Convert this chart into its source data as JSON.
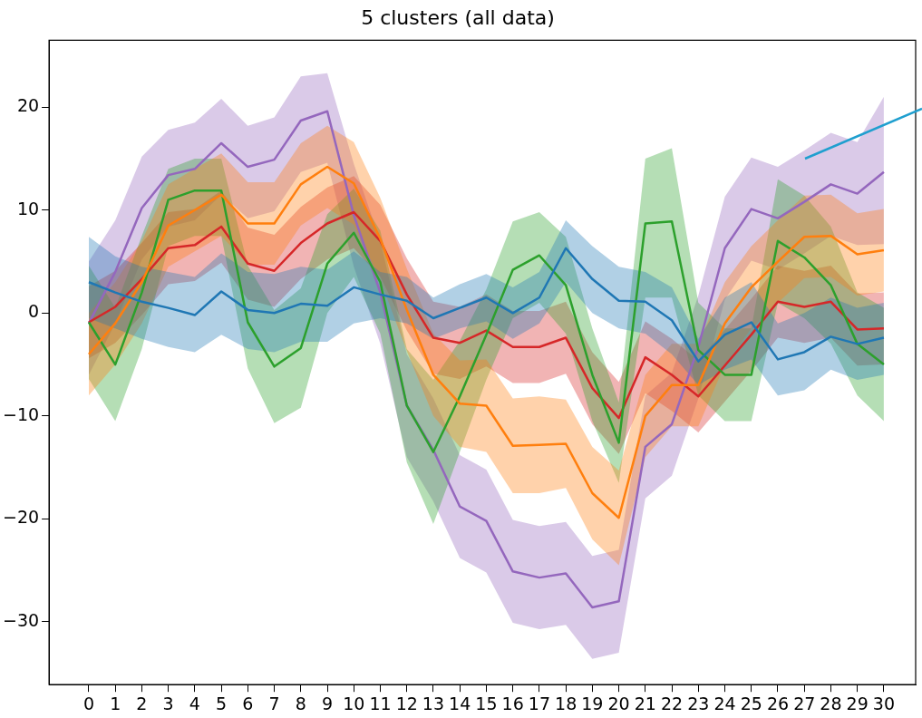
{
  "chart_data": {
    "type": "line",
    "title": "5 clusters (all data)",
    "x": [
      0,
      1,
      2,
      3,
      4,
      5,
      6,
      7,
      8,
      9,
      10,
      11,
      12,
      13,
      14,
      15,
      16,
      17,
      18,
      19,
      20,
      21,
      22,
      23,
      24,
      25,
      26,
      27,
      28,
      29,
      30
    ],
    "xlim": [
      -1.5,
      31.2
    ],
    "xticks": [
      0,
      1,
      2,
      3,
      4,
      5,
      6,
      7,
      8,
      9,
      10,
      11,
      12,
      13,
      14,
      15,
      16,
      17,
      18,
      19,
      20,
      21,
      22,
      23,
      24,
      25,
      26,
      27,
      28,
      29,
      30
    ],
    "ylim": [
      -36.1,
      26.5
    ],
    "yticks": [
      {
        "value": -30,
        "label": "−30"
      },
      {
        "value": -20,
        "label": "−20"
      },
      {
        "value": -10,
        "label": "−10"
      },
      0,
      10,
      20
    ],
    "grid": false,
    "legend": false,
    "marker": "none",
    "line_style": "solid",
    "series": [
      {
        "color": "#1f77b4",
        "values": [
          3.0,
          2.0,
          1.1,
          0.5,
          -0.2,
          2.1,
          0.3,
          0,
          0.9,
          0.7,
          2.5,
          1.8,
          1.2,
          -0.5,
          0.5,
          1.5,
          0,
          1.5,
          6.3,
          3.3,
          1.2,
          1.1,
          -0.7,
          -4.7,
          -2.1,
          -0.9,
          -4.5,
          -3.8,
          -2.3,
          -3.0,
          -2.4
        ],
        "lower": [
          -0.5,
          -1.5,
          -2.5,
          -3.3,
          -3.8,
          -2.1,
          -3.5,
          -3.8,
          -2.8,
          -2.8,
          -1,
          -0.5,
          -1,
          -2.5,
          -1.5,
          -0.8,
          -2.5,
          -1,
          3,
          0,
          -1.5,
          -2,
          -4,
          -7,
          -5.5,
          -4.5,
          -8,
          -7.5,
          -5.5,
          -6.5,
          -6
        ],
        "upper": [
          7.4,
          5.5,
          4.5,
          4,
          3.5,
          5.8,
          4,
          3.8,
          4.5,
          4.2,
          6,
          4,
          3.5,
          1.5,
          2.8,
          3.8,
          2.5,
          4,
          9,
          6.5,
          4.5,
          4,
          2.5,
          -2.5,
          1.5,
          3,
          -1,
          0,
          1.5,
          0.5,
          1
        ]
      },
      {
        "color": "#ff7f0e",
        "values": [
          -4,
          -1,
          3,
          8.5,
          10,
          11.5,
          8.7,
          8.7,
          12.5,
          14.2,
          12.6,
          7.2,
          0.3,
          -6,
          -8.8,
          -9,
          -12.9,
          -12.8,
          -12.7,
          -17.5,
          -19.9,
          -10,
          -7,
          -7,
          -1,
          2.5,
          5,
          7.4,
          7.5,
          5.7,
          6.1
        ],
        "lower": [
          -8,
          -5,
          -1,
          4.5,
          6,
          7.5,
          4.7,
          4.7,
          8.5,
          10.2,
          8.6,
          3.2,
          -3.7,
          -10,
          -13,
          -13.5,
          -17.5,
          -17.5,
          -17,
          -22,
          -24.5,
          -14,
          -11,
          -11,
          -5,
          -1.5,
          1,
          3.4,
          3.5,
          1.7,
          2.1
        ],
        "upper": [
          0,
          3,
          7,
          12.5,
          14,
          15.5,
          12.7,
          12.7,
          16.5,
          18.2,
          16.6,
          11.2,
          4.3,
          -2,
          -4.6,
          -4.5,
          -8.3,
          -8.1,
          -8.4,
          -13,
          -15.3,
          -6,
          -3,
          -3,
          3,
          6.5,
          9,
          11.4,
          11.5,
          9.7,
          10.1
        ]
      },
      {
        "color": "#2ca02c",
        "values": [
          -0.9,
          -5,
          2,
          11,
          11.9,
          11.9,
          -0.9,
          -5.2,
          -3.4,
          4.8,
          7.8,
          3,
          -9,
          -13.5,
          -8.1,
          -2.1,
          4.2,
          5.6,
          2.7,
          -6,
          -12.6,
          8.7,
          8.9,
          -3.6,
          -6,
          -6,
          7,
          5.4,
          2.7,
          -3,
          -5
        ],
        "lower": [
          -6.4,
          -10.5,
          -3.5,
          6.5,
          7.5,
          7.5,
          -5.4,
          -10.7,
          -9.2,
          0,
          3.5,
          -2,
          -14.5,
          -20.5,
          -13.5,
          -6.5,
          -0.5,
          1,
          -2,
          -10.5,
          -16.5,
          1.5,
          1.5,
          -8,
          -10.5,
          -10.5,
          1,
          -0.5,
          -3,
          -8,
          -10.5
        ],
        "upper": [
          4.6,
          0.5,
          7.5,
          14,
          15,
          15,
          4.6,
          0.3,
          2.4,
          9.6,
          12.1,
          8,
          -3.5,
          -6.5,
          -2.7,
          2.3,
          8.9,
          9.8,
          7.4,
          -1.5,
          -8.7,
          15,
          16,
          1,
          -1.5,
          -1.5,
          13,
          11.4,
          8.4,
          2,
          0.5
        ]
      },
      {
        "color": "#d62728",
        "values": [
          -0.9,
          0.6,
          3.3,
          6.3,
          6.6,
          8.4,
          4.8,
          4.1,
          6.8,
          8.7,
          9.8,
          7,
          1.8,
          -2.4,
          -2.9,
          -1.7,
          -3.3,
          -3.3,
          -2.4,
          -7.3,
          -10.2,
          -4.3,
          -6,
          -8.1,
          -5.1,
          -2.1,
          1.1,
          0.6,
          1.1,
          -1.6,
          -1.5
        ],
        "lower": [
          -4.4,
          -2.9,
          -0.2,
          2.8,
          3.1,
          4.9,
          1.3,
          0.6,
          3.3,
          5.2,
          6.3,
          3.5,
          -1.7,
          -5.9,
          -6.4,
          -5.2,
          -6.8,
          -6.8,
          -5.9,
          -10.8,
          -13.7,
          -7.8,
          -9.5,
          -11.6,
          -8.6,
          -5.6,
          -2.4,
          -2.9,
          -2.4,
          -5.1,
          -5
        ],
        "upper": [
          2.6,
          4.1,
          6.8,
          9.8,
          10.1,
          11.9,
          8.3,
          7.6,
          10.3,
          12.2,
          13.3,
          10.5,
          5.3,
          1.1,
          0.6,
          1.8,
          0.2,
          0.2,
          1.1,
          -3.8,
          -6.7,
          -0.8,
          -2.5,
          -4.6,
          -1.6,
          1.4,
          4.6,
          4.1,
          4.6,
          1.9,
          2
        ]
      },
      {
        "color": "#9467bd",
        "values": [
          -1,
          4,
          10.2,
          13.4,
          14,
          16.5,
          14.2,
          14.9,
          18.7,
          19.6,
          9.5,
          2,
          -9,
          -13.3,
          -18.8,
          -20.2,
          -25.1,
          -25.7,
          -25.3,
          -28.6,
          -28,
          -13,
          -10.8,
          -3.3,
          6.3,
          10.1,
          9.2,
          10.8,
          12.5,
          11.6,
          13.7
        ],
        "lower": [
          -6,
          -1,
          5.2,
          8.4,
          9,
          11.5,
          9.2,
          9.9,
          13.7,
          14.6,
          4.5,
          -3,
          -14,
          -18.3,
          -23.8,
          -25.2,
          -30.1,
          -30.7,
          -30.3,
          -33.6,
          -33,
          -18,
          -15.8,
          -8.3,
          1.3,
          5.1,
          4.2,
          5.8,
          7.5,
          6.6,
          6.7
        ],
        "upper": [
          5,
          9,
          15.2,
          17.8,
          18.5,
          20.8,
          18.2,
          19,
          23,
          23.3,
          14.5,
          7,
          -4,
          -8.3,
          -13.8,
          -15.2,
          -20.1,
          -20.7,
          -20.3,
          -23.6,
          -23,
          -8,
          -5.8,
          1.7,
          11.3,
          15.1,
          14.2,
          15.8,
          17.5,
          16.6,
          21
        ]
      }
    ]
  }
}
